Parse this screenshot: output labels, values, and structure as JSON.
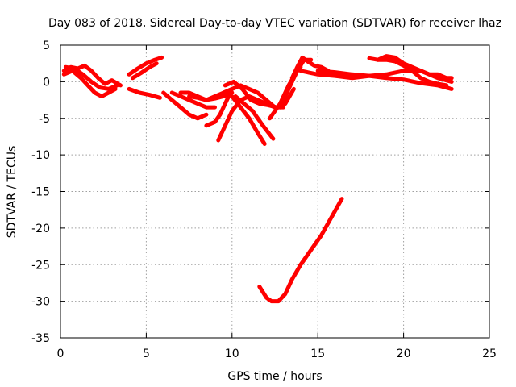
{
  "chart_data": {
    "type": "line",
    "title": "Day 083 of 2018, Sidereal Day-to-day VTEC variation (SDTVAR) for receiver lhaz",
    "xlabel": "GPS time / hours",
    "ylabel": "SDTVAR / TECUs",
    "xlim": [
      0,
      25
    ],
    "ylim": [
      -35,
      5
    ],
    "xticks": [
      "0",
      "5",
      "10",
      "15",
      "20",
      "25"
    ],
    "yticks": [
      "5",
      "0",
      "-5",
      "-10",
      "-15",
      "-20",
      "-25",
      "-30",
      "-35"
    ],
    "grid": true,
    "color": "#ff0000",
    "series": [
      {
        "name": "s1",
        "x": [
          0.2,
          0.6,
          1.0,
          1.4,
          1.8,
          2.2,
          2.6,
          3.0,
          3.5
        ],
        "y": [
          1.5,
          2.0,
          1.8,
          2.2,
          1.5,
          0.5,
          -0.3,
          0.2,
          -0.5
        ]
      },
      {
        "name": "s2",
        "x": [
          0.2,
          0.7,
          1.2,
          1.6,
          2.0,
          2.4,
          2.8,
          3.2
        ],
        "y": [
          1.0,
          1.5,
          0.5,
          -0.5,
          -1.5,
          -2.0,
          -1.5,
          -1.0
        ]
      },
      {
        "name": "s3",
        "x": [
          0.3,
          0.8,
          1.3,
          1.8,
          2.3,
          2.8,
          3.3
        ],
        "y": [
          2.0,
          1.8,
          1.0,
          0.0,
          -0.8,
          -1.0,
          -0.5
        ]
      },
      {
        "name": "s4",
        "x": [
          4.0,
          4.5,
          5.0,
          5.5,
          5.9
        ],
        "y": [
          1.0,
          1.8,
          2.5,
          3.0,
          3.3
        ]
      },
      {
        "name": "s5",
        "x": [
          4.2,
          4.7,
          5.2,
          5.6
        ],
        "y": [
          0.5,
          1.2,
          2.0,
          2.5
        ]
      },
      {
        "name": "s6",
        "x": [
          4.0,
          4.6,
          5.2,
          5.8
        ],
        "y": [
          -1.0,
          -1.5,
          -1.8,
          -2.2
        ]
      },
      {
        "name": "s7",
        "x": [
          6.0,
          6.5,
          7.0,
          7.5,
          8.0,
          8.5
        ],
        "y": [
          -1.5,
          -2.5,
          -3.5,
          -4.5,
          -5.0,
          -4.5
        ]
      },
      {
        "name": "s8",
        "x": [
          6.5,
          7.0,
          7.5,
          8.0,
          8.5,
          9.0
        ],
        "y": [
          -1.5,
          -2.0,
          -2.5,
          -3.0,
          -3.5,
          -3.5
        ]
      },
      {
        "name": "s9",
        "x": [
          7.0,
          7.5,
          8.0,
          8.5,
          9.0,
          9.5,
          10.0
        ],
        "y": [
          -1.5,
          -1.5,
          -2.0,
          -2.5,
          -2.0,
          -1.5,
          -1.0
        ]
      },
      {
        "name": "s10",
        "x": [
          7.5,
          8.0,
          8.5,
          9.0,
          9.5,
          10.0
        ],
        "y": [
          -2.0,
          -2.2,
          -2.5,
          -2.3,
          -2.0,
          -1.5
        ]
      },
      {
        "name": "s11",
        "x": [
          8.5,
          9.0,
          9.3,
          9.6,
          9.9
        ],
        "y": [
          -6.0,
          -5.5,
          -4.5,
          -3.0,
          -1.5
        ]
      },
      {
        "name": "s12",
        "x": [
          9.2,
          9.6,
          10.0,
          10.5,
          11.0,
          11.5,
          12.0,
          12.5,
          13.0
        ],
        "y": [
          -8.0,
          -6.0,
          -4.0,
          -2.5,
          -2.0,
          -2.5,
          -3.0,
          -3.5,
          -3.5
        ]
      },
      {
        "name": "s13",
        "x": [
          9.5,
          10.0,
          10.5,
          11.0,
          11.5,
          12.0,
          12.5
        ],
        "y": [
          -1.5,
          -1.0,
          -0.5,
          -1.0,
          -1.5,
          -2.5,
          -3.5
        ]
      },
      {
        "name": "s14",
        "x": [
          9.6,
          10.1,
          10.6,
          11.1,
          11.6,
          12.1,
          12.6,
          13.1,
          13.6
        ],
        "y": [
          -0.5,
          0.0,
          -1.0,
          -2.5,
          -3.0,
          -3.2,
          -3.5,
          -3.0,
          -1.0
        ]
      },
      {
        "name": "s15",
        "x": [
          10.0,
          10.5,
          11.0,
          11.5,
          11.9
        ],
        "y": [
          -2.0,
          -3.5,
          -5.0,
          -7.0,
          -8.5
        ]
      },
      {
        "name": "s16",
        "x": [
          10.2,
          10.7,
          11.2,
          11.8,
          12.4
        ],
        "y": [
          -2.0,
          -3.0,
          -4.0,
          -6.0,
          -7.8
        ]
      },
      {
        "name": "s17",
        "x": [
          12.2,
          12.8,
          13.3,
          13.8,
          14.0
        ],
        "y": [
          -5.0,
          -3.0,
          -0.5,
          1.5,
          2.0
        ]
      },
      {
        "name": "s18",
        "x": [
          12.8,
          13.3,
          13.8,
          14.2,
          14.6
        ],
        "y": [
          -3.5,
          -1.0,
          1.5,
          3.0,
          3.0
        ]
      },
      {
        "name": "s19",
        "x": [
          13.5,
          13.8,
          14.1,
          14.4,
          14.8,
          15.2,
          15.6
        ],
        "y": [
          0.5,
          2.0,
          3.3,
          2.8,
          2.2,
          2.0,
          1.5
        ]
      },
      {
        "name": "s20",
        "x": [
          14.0,
          15.0,
          16.0,
          17.0,
          18.0,
          19.0,
          20.0,
          21.0,
          22.0,
          22.8
        ],
        "y": [
          1.5,
          1.0,
          0.8,
          0.5,
          0.8,
          1.0,
          1.5,
          1.5,
          0.5,
          0.0
        ]
      },
      {
        "name": "s21",
        "x": [
          15.0,
          16.0,
          17.0,
          18.0,
          19.0,
          20.0,
          21.0,
          22.0,
          22.8
        ],
        "y": [
          1.5,
          1.3,
          1.0,
          0.8,
          0.5,
          0.3,
          -0.2,
          -0.5,
          -1.0
        ]
      },
      {
        "name": "s22",
        "x": [
          18.0,
          18.5,
          19.0,
          19.5,
          20.0,
          20.5,
          21.0,
          21.5,
          22.0,
          22.5,
          22.8
        ],
        "y": [
          3.2,
          3.0,
          3.5,
          3.3,
          2.5,
          2.0,
          1.5,
          1.0,
          1.0,
          0.5,
          0.5
        ]
      },
      {
        "name": "s23",
        "x": [
          18.5,
          19.0,
          19.5,
          20.0,
          20.5,
          21.0,
          21.5,
          22.0,
          22.5
        ],
        "y": [
          3.0,
          3.0,
          2.8,
          2.2,
          1.5,
          0.5,
          0.0,
          -0.3,
          -0.5
        ]
      },
      {
        "name": "s24",
        "x": [
          11.6,
          12.0,
          12.3,
          12.7,
          13.1,
          13.5,
          14.0,
          14.6,
          15.2,
          15.8,
          16.4
        ],
        "y": [
          -28.0,
          -29.5,
          -30.0,
          -30.0,
          -29.0,
          -27.0,
          -25.0,
          -23.0,
          -21.0,
          -18.5,
          -16.0
        ]
      }
    ]
  }
}
